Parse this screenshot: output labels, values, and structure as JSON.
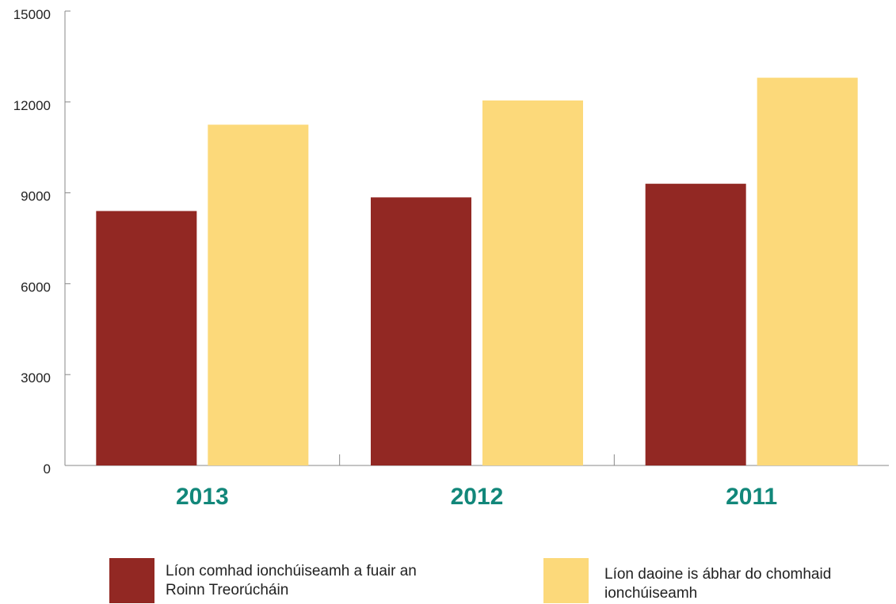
{
  "chart_data": {
    "type": "bar",
    "categories": [
      "2013",
      "2012",
      "2011"
    ],
    "series": [
      {
        "name": "Líon comhad ionchúiseamh a fuair an Roinn Treorúcháin",
        "values": [
          8400,
          8850,
          9300
        ],
        "color": "#922823"
      },
      {
        "name": "Líon daoine is ábhar do chomhaid ionchúiseamh",
        "values": [
          11250,
          12050,
          12800
        ],
        "color": "#FCD97A"
      }
    ],
    "ylim": [
      0,
      15000
    ],
    "yticks": [
      0,
      3000,
      6000,
      9000,
      12000,
      15000
    ],
    "category_label_color": "#12877A",
    "axis_color": "#888888",
    "grid": false,
    "legend_position": "bottom",
    "title": "",
    "xlabel": "",
    "ylabel": ""
  },
  "legend": {
    "item_1_line_1": "Líon comhad ionchúiseamh a fuair an",
    "item_1_line_2": "Roinn Treorúcháin",
    "item_2_line_1": "Líon daoine is ábhar do chomhaid",
    "item_2_line_2": "ionchúiseamh"
  }
}
